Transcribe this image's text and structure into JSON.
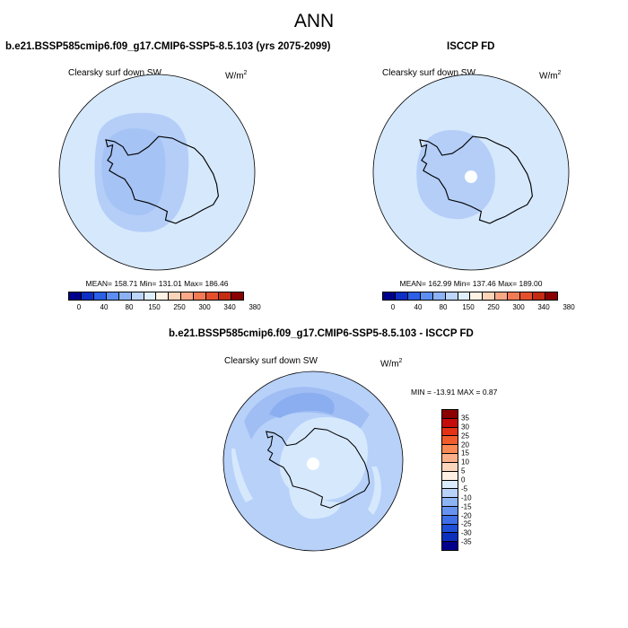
{
  "page": {
    "title": "ANN"
  },
  "panels": {
    "top_left": {
      "title": "b.e21.BSSP585cmip6.f09_g17.CMIP6-SSP5-8.5.103 (yrs 2075-2099)",
      "variable": "Clearsky surf down SW",
      "units_base": "W/m",
      "units_exp": "2",
      "stats": "MEAN= 158.71  Min= 131.01  Max= 186.46"
    },
    "top_right": {
      "title": "ISCCP FD",
      "variable": "Clearsky surf down SW",
      "units_base": "W/m",
      "units_exp": "2",
      "stats": "MEAN= 162.99  Min= 137.46  Max= 189.00"
    },
    "bottom": {
      "title": "b.e21.BSSP585cmip6.f09_g17.CMIP6-SSP5-8.5.103 - ISCCP FD",
      "variable": "Clearsky surf down SW",
      "units_base": "W/m",
      "units_exp": "2",
      "stats": "MIN = -13.91 MAX =  0.87"
    }
  },
  "colorbars": {
    "abs": {
      "colors": [
        "#00008b",
        "#0d2fc4",
        "#2b5fe6",
        "#5b8ef0",
        "#8cb2f5",
        "#bcd5f8",
        "#dfeefc",
        "#fff3e6",
        "#fdd4b8",
        "#f9a987",
        "#f27a55",
        "#e4502e",
        "#c42b13",
        "#8b0000"
      ],
      "labels": [
        "0",
        "40",
        "80",
        "150",
        "250",
        "300",
        "340",
        "380"
      ]
    },
    "diff": {
      "colors": [
        "#8b0000",
        "#c40c0c",
        "#e43217",
        "#f05c2c",
        "#f98a55",
        "#fcb08a",
        "#fdd7bd",
        "#fff0e4",
        "#dbeafc",
        "#b8d2fa",
        "#8db5f5",
        "#6693ef",
        "#3e6fe6",
        "#1f4fd9",
        "#0a2fbd",
        "#00008b"
      ],
      "labels": [
        "35",
        "30",
        "25",
        "20",
        "15",
        "10",
        "5",
        "0",
        "-5",
        "-10",
        "-15",
        "-20",
        "-25",
        "-30",
        "-35"
      ]
    }
  },
  "map_colors": {
    "ocean_light": "#d6e8fc",
    "ocean_mid": "#b7d1f9",
    "field_dark": "#a0bdf4",
    "field_darker": "#8aaef0",
    "pole_hole": "#ffffff",
    "coast": "#000000"
  }
}
